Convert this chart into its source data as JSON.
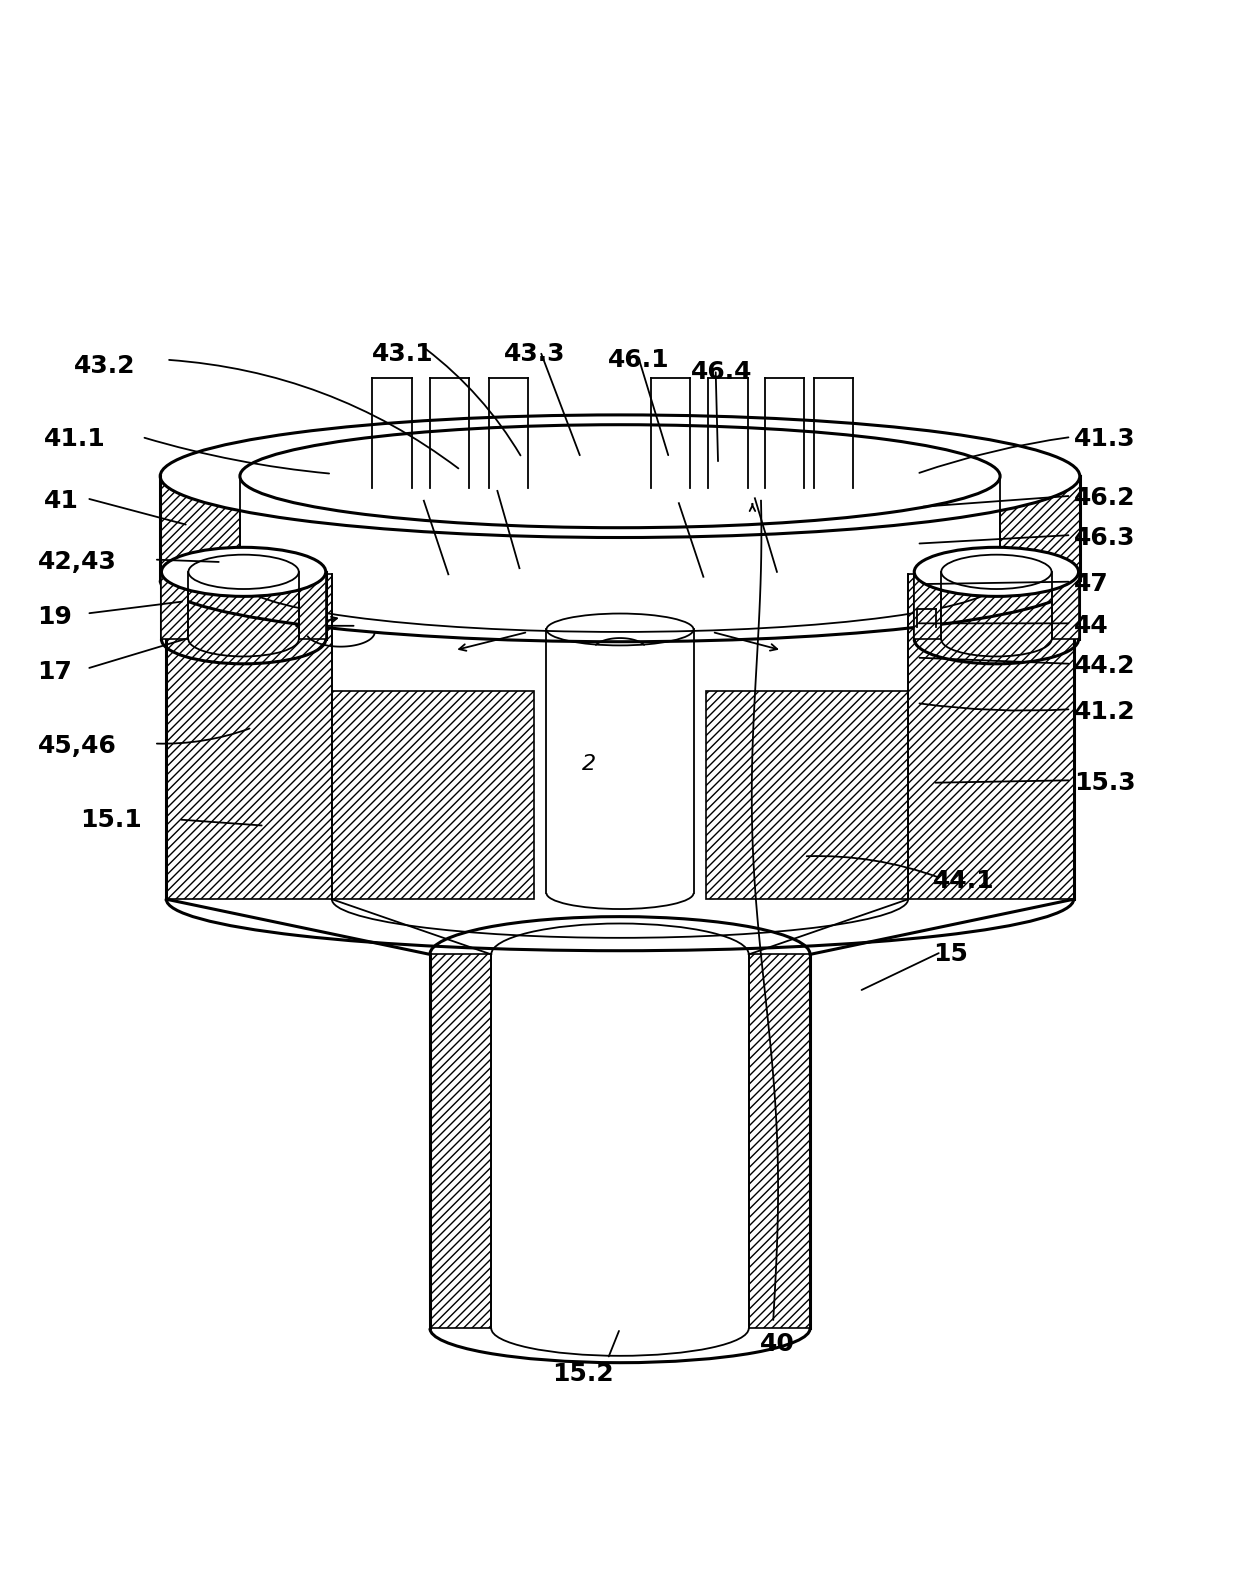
{
  "bg_color": "#ffffff",
  "line_color": "#000000",
  "figsize": [
    12.4,
    15.9
  ],
  "dpi": 100,
  "label_fontsize": 18,
  "label_fontweight": "bold"
}
